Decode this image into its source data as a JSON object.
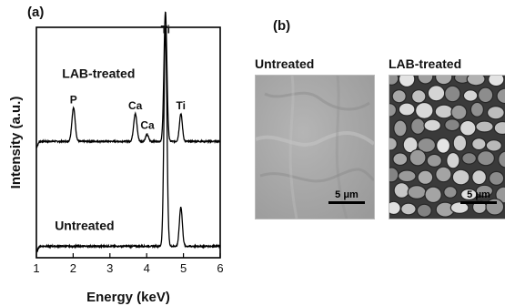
{
  "panel_a": {
    "label": "(a)"
  },
  "panel_b": {
    "label": "(b)",
    "images": [
      {
        "title": "Untreated",
        "scale_bar": "5 μm"
      },
      {
        "title": "LAB-treated",
        "scale_bar": "5 μm"
      }
    ]
  },
  "chart_data": {
    "type": "line",
    "title": "",
    "xlabel": "Energy (keV)",
    "ylabel": "Intensity (a.u.)",
    "xlim": [
      1,
      6
    ],
    "xticks": [
      1,
      2,
      3,
      4,
      5,
      6
    ],
    "yticks_shown": false,
    "series": [
      {
        "name": "LAB-treated",
        "label_position": [
          1.7,
          0.78
        ],
        "baseline": 0.505,
        "peaks": [
          {
            "label": "P",
            "x": 2.01,
            "height": 0.145,
            "width": 0.045
          },
          {
            "label": "Ca",
            "x": 3.69,
            "height": 0.12,
            "width": 0.045
          },
          {
            "label": "Ca",
            "x": 4.01,
            "height": 0.03,
            "width": 0.04
          },
          {
            "label": "Ti",
            "x": 4.51,
            "height": 0.56,
            "width": 0.04
          },
          {
            "label": "Ti",
            "x": 4.93,
            "height": 0.12,
            "width": 0.04
          }
        ]
      },
      {
        "name": "Untreated",
        "label_position": [
          1.5,
          0.12
        ],
        "baseline": 0.05,
        "peaks": [
          {
            "label": "Ti",
            "x": 4.51,
            "height": 0.95,
            "width": 0.04
          },
          {
            "label": "",
            "x": 4.93,
            "height": 0.17,
            "width": 0.04
          }
        ]
      }
    ],
    "annotations": [
      {
        "text": "P",
        "x": 2.01,
        "y": 0.67
      },
      {
        "text": "Ca",
        "x": 3.69,
        "y": 0.645
      },
      {
        "text": "Ca",
        "x": 4.02,
        "y": 0.56
      },
      {
        "text": "Ti",
        "x": 4.51,
        "y": 0.975
      },
      {
        "text": "Ti",
        "x": 4.93,
        "y": 0.645
      }
    ],
    "grid": false,
    "legend": "none"
  }
}
